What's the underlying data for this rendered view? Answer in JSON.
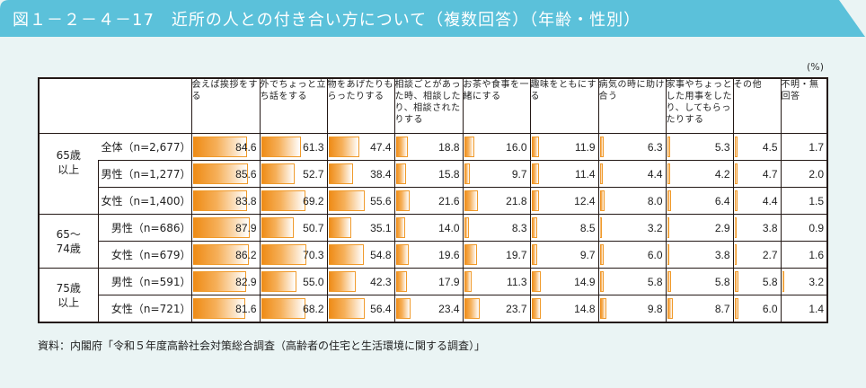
{
  "header": {
    "title": "図１－２－４－17　近所の人との付き合い方について（複数回答）（年齢・性別）",
    "banner_color": "#5bc1da"
  },
  "unit_label": "(%)",
  "table": {
    "columns": [
      "会えば挨拶をする",
      "外でちょっと立ち話をする",
      "物をあげたりもらったりする",
      "相談ごとがあった時、相談したり、相談されたりする",
      "お茶や食事を一緒にする",
      "趣味をともにする",
      "病気の時に助け合う",
      "家事やちょっとした用事をしたり、してもらったりする",
      "その他",
      "不明・無回答"
    ],
    "groups": [
      {
        "label": "65歳\n以上",
        "rows": [
          {
            "label": "全体（n=2,677）",
            "values": [
              "84.6",
              "61.3",
              "47.4",
              "18.8",
              "16.0",
              "11.9",
              "6.3",
              "5.3",
              "4.5",
              "1.7"
            ]
          },
          {
            "label": "男性（n=1,277）",
            "values": [
              "85.6",
              "52.7",
              "38.4",
              "15.8",
              "9.7",
              "11.4",
              "4.4",
              "4.2",
              "4.7",
              "2.0"
            ]
          },
          {
            "label": "女性（n=1,400）",
            "values": [
              "83.8",
              "69.2",
              "55.6",
              "21.6",
              "21.8",
              "12.4",
              "8.0",
              "6.4",
              "4.4",
              "1.5"
            ]
          }
        ]
      },
      {
        "label": "65～\n74歳",
        "rows": [
          {
            "label": "男性（n=686）",
            "values": [
              "87.9",
              "50.7",
              "35.1",
              "14.0",
              "8.3",
              "8.5",
              "3.2",
              "2.9",
              "3.8",
              "0.9"
            ]
          },
          {
            "label": "女性（n=679）",
            "values": [
              "86.2",
              "70.3",
              "54.8",
              "19.6",
              "19.7",
              "9.7",
              "6.0",
              "3.8",
              "2.7",
              "1.6"
            ]
          }
        ]
      },
      {
        "label": "75歳\n以上",
        "rows": [
          {
            "label": "男性（n=591）",
            "values": [
              "82.9",
              "55.0",
              "42.3",
              "17.9",
              "11.3",
              "14.9",
              "5.8",
              "5.8",
              "5.8",
              "3.2"
            ]
          },
          {
            "label": "女性（n=721）",
            "values": [
              "81.6",
              "68.2",
              "56.4",
              "23.4",
              "23.7",
              "14.8",
              "9.8",
              "8.7",
              "6.0",
              "1.4"
            ]
          }
        ]
      }
    ]
  },
  "source": "資料：内閣府「令和５年度高齢社会対策総合調査（高齢者の住宅と生活環境に関する調査）」",
  "chart_data": {
    "type": "table",
    "title": "図１－２－４－17　近所の人との付き合い方について（複数回答）（年齢・性別）",
    "unit": "%",
    "categories": [
      "会えば挨拶をする",
      "外でちょっと立ち話をする",
      "物をあげたりもらったりする",
      "相談ごとがあった時、相談したり、相談されたりする",
      "お茶や食事を一緒にする",
      "趣味をともにする",
      "病気の時に助け合う",
      "家事やちょっとした用事をしたり、してもらったりする",
      "その他",
      "不明・無回答"
    ],
    "series": [
      {
        "name": "65歳以上 全体（n=2,677）",
        "values": [
          84.6,
          61.3,
          47.4,
          18.8,
          16.0,
          11.9,
          6.3,
          5.3,
          4.5,
          1.7
        ]
      },
      {
        "name": "65歳以上 男性（n=1,277）",
        "values": [
          85.6,
          52.7,
          38.4,
          15.8,
          9.7,
          11.4,
          4.4,
          4.2,
          4.7,
          2.0
        ]
      },
      {
        "name": "65歳以上 女性（n=1,400）",
        "values": [
          83.8,
          69.2,
          55.6,
          21.6,
          21.8,
          12.4,
          8.0,
          6.4,
          4.4,
          1.5
        ]
      },
      {
        "name": "65～74歳 男性（n=686）",
        "values": [
          87.9,
          50.7,
          35.1,
          14.0,
          8.3,
          8.5,
          3.2,
          2.9,
          3.8,
          0.9
        ]
      },
      {
        "name": "65～74歳 女性（n=679）",
        "values": [
          86.2,
          70.3,
          54.8,
          19.6,
          19.7,
          9.7,
          6.0,
          3.8,
          2.7,
          1.6
        ]
      },
      {
        "name": "75歳以上 男性（n=591）",
        "values": [
          82.9,
          55.0,
          42.3,
          17.9,
          11.3,
          14.9,
          5.8,
          5.8,
          5.8,
          3.2
        ]
      },
      {
        "name": "75歳以上 女性（n=721）",
        "values": [
          81.6,
          68.2,
          56.4,
          23.4,
          23.7,
          14.8,
          9.8,
          8.7,
          6.0,
          1.4
        ]
      }
    ],
    "bar_color": "#ee8a14",
    "source": "資料：内閣府「令和５年度高齢社会対策総合調査（高齢者の住宅と生活環境に関する調査）」"
  }
}
